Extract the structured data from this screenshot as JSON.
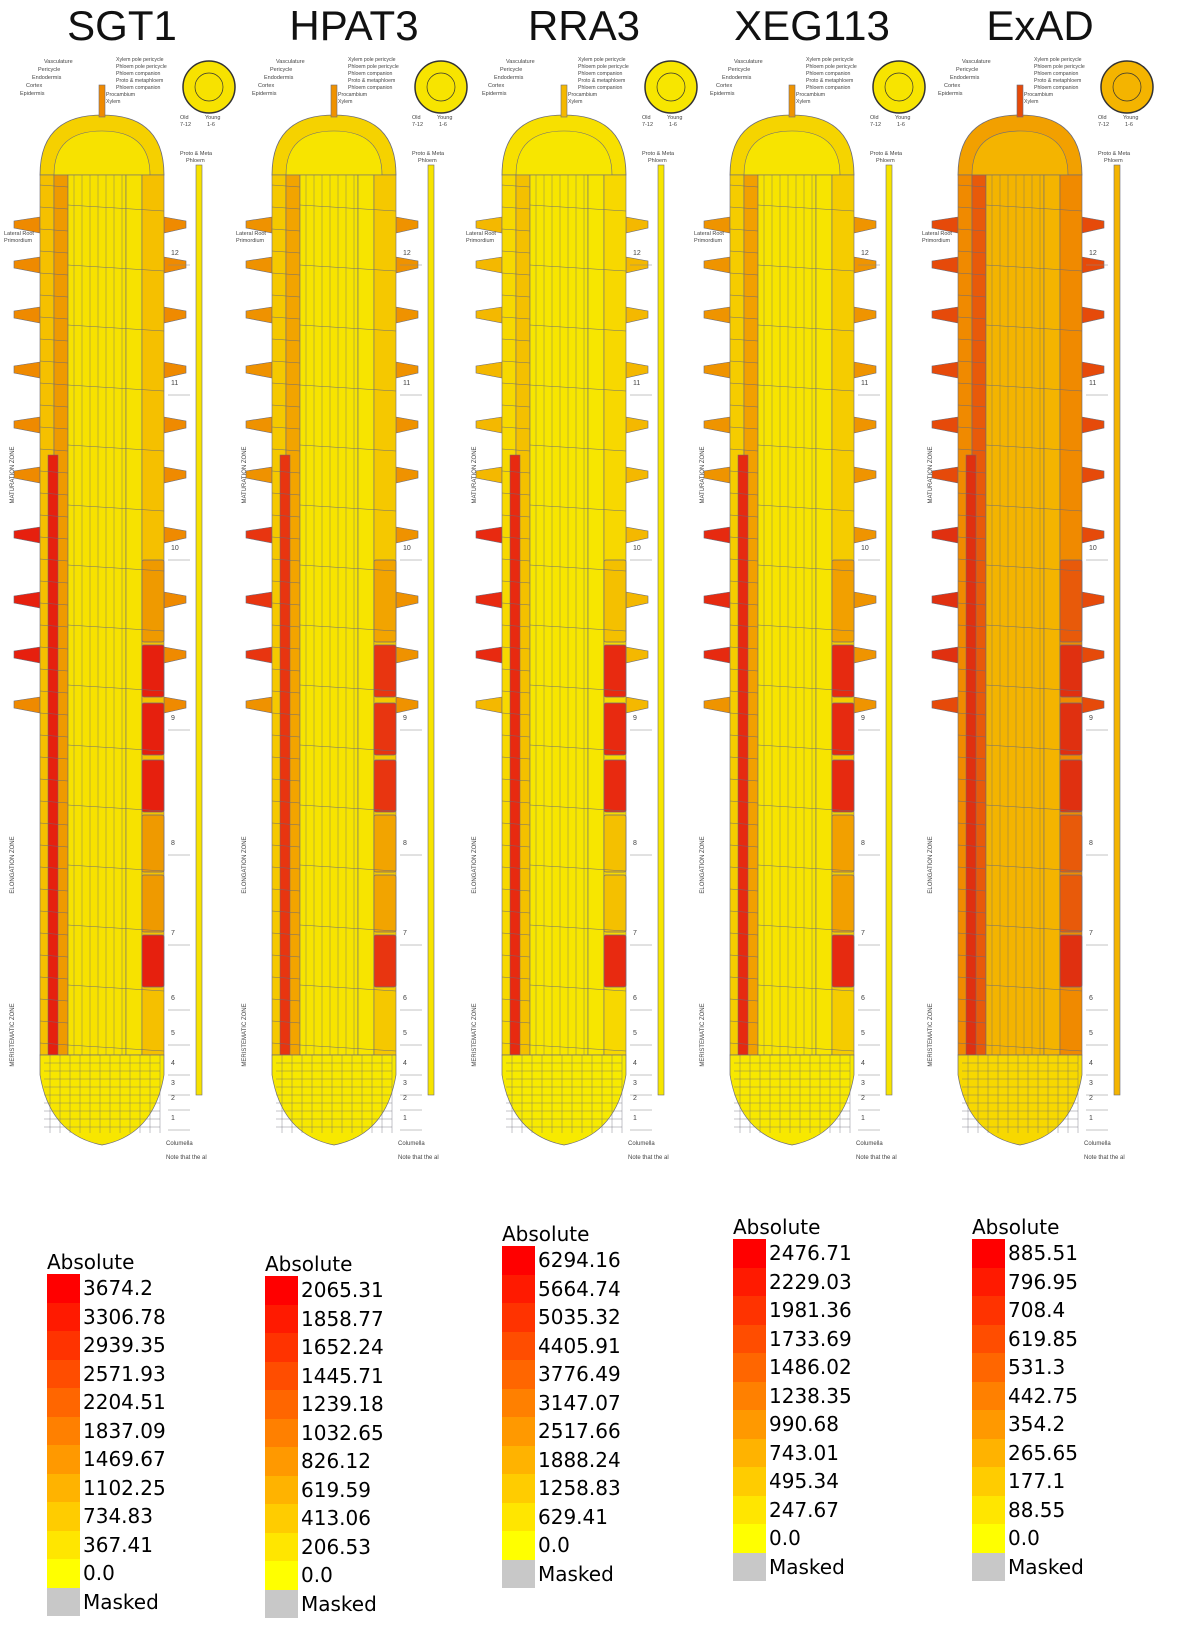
{
  "figure": {
    "panels": [
      {
        "gene": "SGT1",
        "legend_title": "Absolute",
        "scale": [
          "3674.2",
          "3306.78",
          "2939.35",
          "2571.93",
          "2204.51",
          "1837.09",
          "1469.67",
          "1102.25",
          "734.83",
          "367.41",
          "0.0"
        ],
        "masked_label": "Masked",
        "tissue": {
          "epidermis": "#f5c000",
          "cortex": "#ef9a00",
          "endodermis": "#e6200e",
          "stele": "#f7e200",
          "hairs": "#ef8a00",
          "lateral": "#f5d000",
          "tip": "#f7e600"
        }
      },
      {
        "gene": "HPAT3",
        "legend_title": "Absolute",
        "scale": [
          "2065.31",
          "1858.77",
          "1652.24",
          "1445.71",
          "1239.18",
          "1032.65",
          "826.12",
          "619.59",
          "413.06",
          "206.53",
          "0.0"
        ],
        "masked_label": "Masked",
        "tissue": {
          "epidermis": "#f5c800",
          "cortex": "#f2a400",
          "endodermis": "#e83510",
          "stele": "#f7e400",
          "hairs": "#ef9200",
          "lateral": "#f5d200",
          "tip": "#f7e800"
        }
      },
      {
        "gene": "RRA3",
        "legend_title": "Absolute",
        "scale": [
          "6294.16",
          "5664.74",
          "5035.32",
          "4405.91",
          "3776.49",
          "3147.07",
          "2517.66",
          "1888.24",
          "1258.83",
          "629.41",
          "0.0"
        ],
        "masked_label": "Masked",
        "tissue": {
          "epidermis": "#f7d800",
          "cortex": "#f4c000",
          "endodermis": "#e82a10",
          "stele": "#f7e600",
          "hairs": "#f4b800",
          "lateral": "#f7e000",
          "tip": "#f7ea00"
        }
      },
      {
        "gene": "XEG113",
        "legend_title": "Absolute",
        "scale": [
          "2476.71",
          "2229.03",
          "1981.36",
          "1733.69",
          "1486.02",
          "1238.35",
          "990.68",
          "743.01",
          "495.34",
          "247.67",
          "0.0"
        ],
        "masked_label": "Masked",
        "tissue": {
          "epidermis": "#f5cc00",
          "cortex": "#f2a000",
          "endodermis": "#e62a10",
          "stele": "#f7e400",
          "hairs": "#ef9400",
          "lateral": "#f5d400",
          "tip": "#f7e800"
        }
      },
      {
        "gene": "ExAD",
        "legend_title": "Absolute",
        "scale": [
          "885.51",
          "796.95",
          "708.4",
          "619.85",
          "531.3",
          "442.75",
          "354.2",
          "265.65",
          "177.1",
          "88.55",
          "0.0"
        ],
        "masked_label": "Masked",
        "tissue": {
          "epidermis": "#f08a00",
          "cortex": "#e85a0a",
          "endodermis": "#e03010",
          "stele": "#f4b400",
          "hairs": "#e64a0a",
          "lateral": "#f2a000",
          "tip": "#f7d800"
        }
      }
    ],
    "scale_colors": [
      "#ff0000",
      "#ff1a00",
      "#ff3300",
      "#ff4d00",
      "#ff6600",
      "#ff8000",
      "#ff9900",
      "#ffb300",
      "#ffcc00",
      "#ffe600",
      "#ffff00"
    ],
    "masked_color": "#c8c8c8",
    "diagram_labels": {
      "zones": [
        "MATURATION ZONE",
        "ELONGATION ZONE",
        "MERISTEMATIC ZONE"
      ],
      "lateral_root": [
        "Lateral Root",
        "Primordium"
      ],
      "cross_section": [
        "Vasculature",
        "Pericycle",
        "Endodermis",
        "Cortex",
        "Epidermis"
      ],
      "cross_section_right": [
        "Xylem pole pericycle",
        "Phloem pole pericycle",
        "Phloem companion",
        "Proto & metaphloem",
        "Phloem companion",
        "Procambium",
        "Xylem"
      ],
      "age": [
        "Old",
        "7-12",
        "Young",
        "1-6"
      ],
      "phloem": [
        "Proto & Meta",
        "Phloem"
      ],
      "section_numbers": [
        "12",
        "11",
        "10",
        "9",
        "8",
        "7",
        "6",
        "5",
        "4",
        "3",
        "2",
        "1"
      ],
      "columella": "Columella",
      "note": "Note that the al"
    }
  }
}
